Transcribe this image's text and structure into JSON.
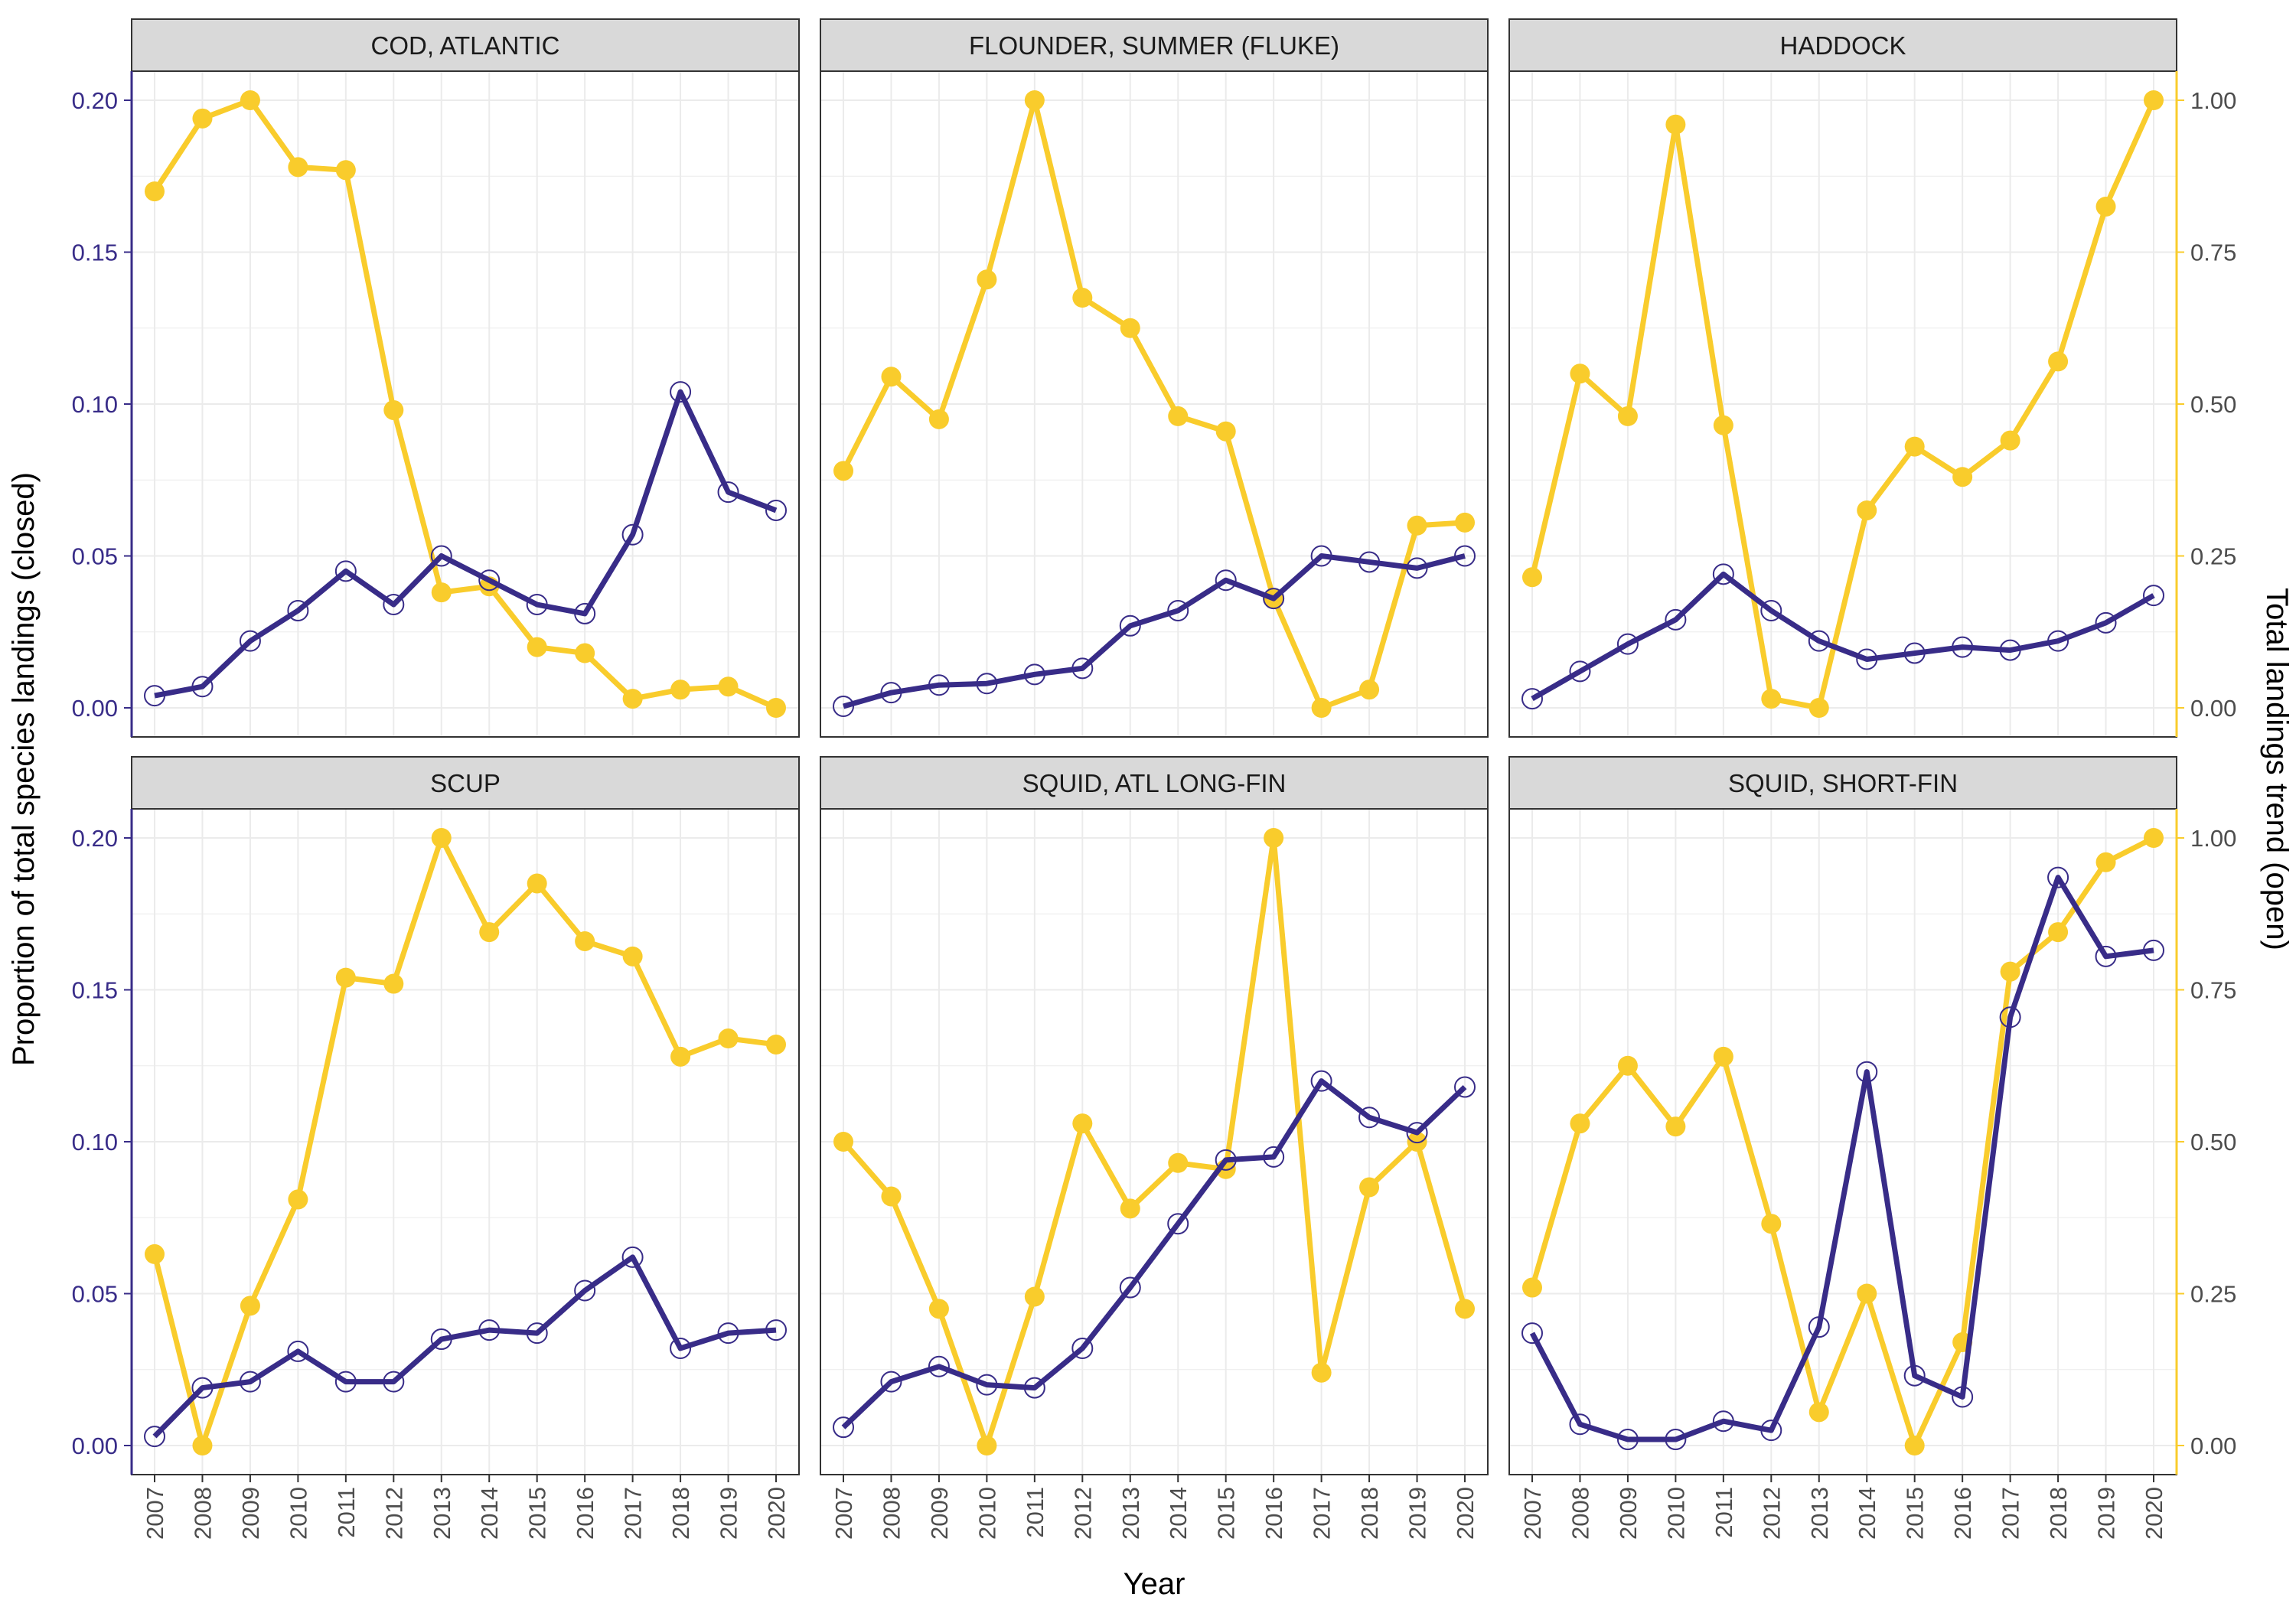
{
  "chart_data": {
    "type": "line",
    "x": [
      2007,
      2008,
      2009,
      2010,
      2011,
      2012,
      2013,
      2014,
      2015,
      2016,
      2017,
      2018,
      2019,
      2020
    ],
    "xlabel": "Year",
    "ylabel_left": "Proportion of total species landings (closed)",
    "ylabel_right": "Total landings trend (open)",
    "ylim_left": [
      0,
      0.2
    ],
    "ylim_right": [
      0,
      1
    ],
    "yticks_left": [
      "0.00",
      "0.05",
      "0.10",
      "0.15",
      "0.20"
    ],
    "yticks_right": [
      "0.00",
      "0.25",
      "0.50",
      "0.75",
      "1.00"
    ],
    "grid": true,
    "colors": {
      "closed": "#382c88",
      "open": "#f9cc2c",
      "left_axis_text": "#382c88"
    },
    "panels": [
      {
        "title": "COD, ATLANTIC",
        "closed": [
          0.004,
          0.007,
          0.022,
          0.032,
          0.045,
          0.034,
          0.05,
          0.042,
          0.034,
          0.031,
          0.057,
          0.104,
          0.071,
          0.065
        ],
        "open": [
          0.85,
          0.97,
          1.0,
          0.89,
          0.885,
          0.49,
          0.19,
          0.2,
          0.1,
          0.09,
          0.015,
          0.03,
          0.035,
          0.0
        ]
      },
      {
        "title": "FLOUNDER, SUMMER (FLUKE)",
        "closed": [
          0.0005,
          0.005,
          0.0075,
          0.008,
          0.011,
          0.013,
          0.027,
          0.032,
          0.042,
          0.036,
          0.05,
          0.048,
          0.046,
          0.05
        ],
        "open": [
          0.39,
          0.545,
          0.475,
          0.705,
          1.0,
          0.675,
          0.625,
          0.48,
          0.455,
          0.18,
          0.0,
          0.03,
          0.3,
          0.305
        ]
      },
      {
        "title": "HADDOCK",
        "closed": [
          0.003,
          0.012,
          0.021,
          0.029,
          0.044,
          0.032,
          0.022,
          0.016,
          0.018,
          0.02,
          0.019,
          0.022,
          0.028,
          0.037
        ],
        "open": [
          0.215,
          0.55,
          0.48,
          0.96,
          0.465,
          0.015,
          0.0,
          0.325,
          0.43,
          0.38,
          0.44,
          0.57,
          0.825,
          1.0
        ]
      },
      {
        "title": "SCUP",
        "closed": [
          0.003,
          0.019,
          0.021,
          0.031,
          0.021,
          0.021,
          0.035,
          0.038,
          0.037,
          0.051,
          0.062,
          0.032,
          0.037,
          0.038
        ],
        "open": [
          0.315,
          0.0,
          0.23,
          0.405,
          0.77,
          0.76,
          1.0,
          0.845,
          0.925,
          0.83,
          0.805,
          0.64,
          0.67,
          0.66
        ]
      },
      {
        "title": "SQUID, ATL LONG-FIN",
        "closed": [
          0.006,
          0.021,
          0.026,
          0.02,
          0.019,
          0.032,
          0.052,
          0.073,
          0.094,
          0.095,
          0.12,
          0.108,
          0.103,
          0.118
        ],
        "open": [
          0.5,
          0.41,
          0.225,
          0.0,
          0.245,
          0.53,
          0.39,
          0.465,
          0.455,
          1.0,
          0.12,
          0.425,
          0.5,
          0.225
        ]
      },
      {
        "title": "SQUID, SHORT-FIN",
        "closed": [
          0.037,
          0.007,
          0.002,
          0.002,
          0.008,
          0.005,
          0.039,
          0.123,
          0.023,
          0.016,
          0.141,
          0.187,
          0.161,
          0.163
        ],
        "open": [
          0.26,
          0.53,
          0.625,
          0.525,
          0.64,
          0.365,
          0.055,
          0.25,
          0.0,
          0.17,
          0.78,
          0.845,
          0.96,
          1.0
        ]
      }
    ]
  }
}
